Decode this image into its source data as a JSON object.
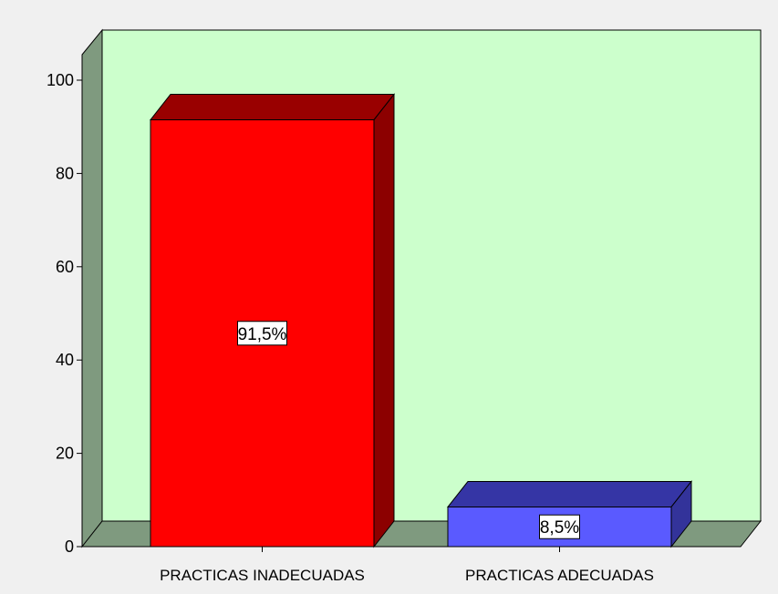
{
  "chart_data": {
    "type": "bar",
    "style": "3d",
    "categories": [
      "PRACTICAS INADECUADAS",
      "PRACTICAS ADECUADAS"
    ],
    "values": [
      91.5,
      8.5
    ],
    "data_labels": [
      "91,5%",
      "8,5%"
    ],
    "yticks": [
      "0",
      "20",
      "40",
      "60",
      "80",
      "100"
    ],
    "ylim": [
      0,
      100
    ],
    "grid": false,
    "legend": "none",
    "colors": {
      "background": "#f0f0f0",
      "back_wall": "#ccffcc",
      "side_wall": "#7f9a7f",
      "floor": "#7f9a7f",
      "bars": [
        {
          "front": "#ff0000",
          "top": "#990000",
          "side": "#8c0000"
        },
        {
          "front": "#5a5aff",
          "top": "#3535a5",
          "side": "#33339a"
        }
      ]
    }
  }
}
